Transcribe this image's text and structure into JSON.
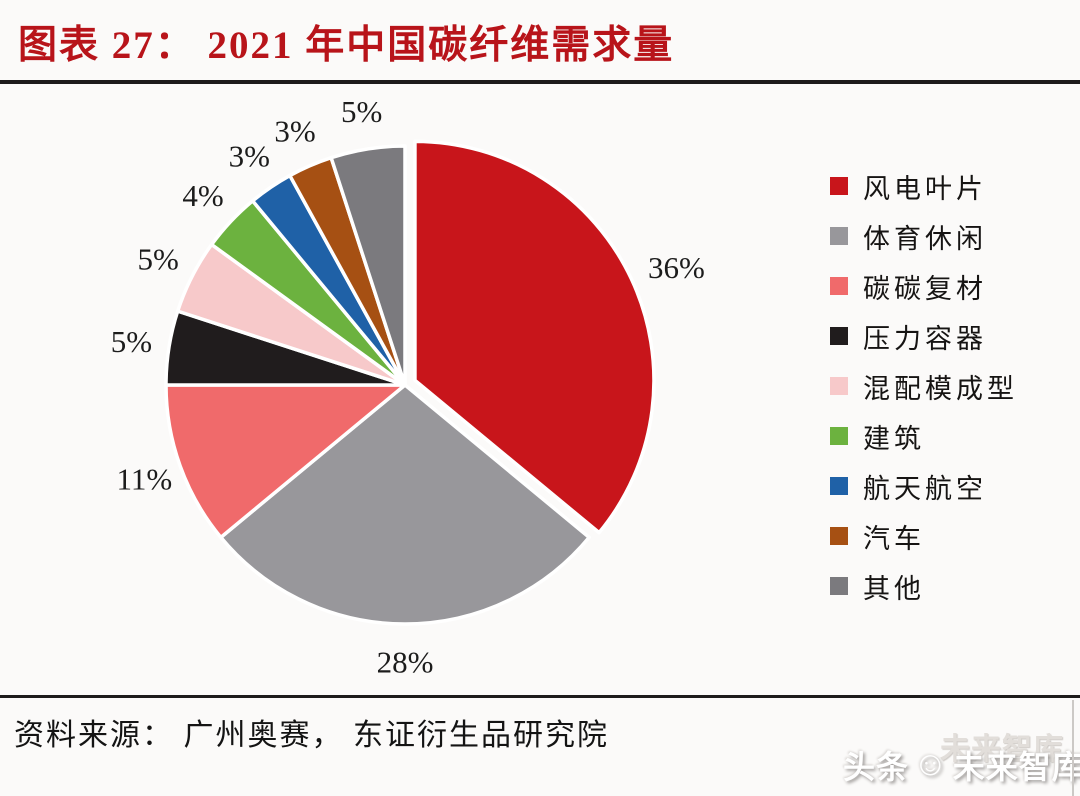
{
  "header": {
    "title": "图表 27： 2021 年中国碳纤维需求量",
    "title_color": "#b8141a"
  },
  "chart_data": {
    "type": "pie",
    "title": "2021 年中国碳纤维需求量",
    "start_angle_deg_from_top": 0,
    "direction": "clockwise",
    "legend_position": "right",
    "value_label_format": "{value}%",
    "slices": [
      {
        "label": "风电叶片",
        "value_pct": 36,
        "color": "#c8151b",
        "exploded": true
      },
      {
        "label": "体育休闲",
        "value_pct": 28,
        "color": "#98979b",
        "exploded": false
      },
      {
        "label": "碳碳复材",
        "value_pct": 11,
        "color": "#f06a6b",
        "exploded": false
      },
      {
        "label": "压力容器",
        "value_pct": 5,
        "color": "#201c1d",
        "exploded": false
      },
      {
        "label": "混配模成型",
        "value_pct": 5,
        "color": "#f7c9ca",
        "exploded": false
      },
      {
        "label": "建筑",
        "value_pct": 4,
        "color": "#6cb23f",
        "exploded": false
      },
      {
        "label": "航天航空",
        "value_pct": 3,
        "color": "#1f61a7",
        "exploded": false
      },
      {
        "label": "汽车",
        "value_pct": 3,
        "color": "#a65013",
        "exploded": false
      },
      {
        "label": "其他",
        "value_pct": 5,
        "color": "#7b7a7e",
        "exploded": false
      }
    ]
  },
  "footer": {
    "source": "资料来源： 广州奥赛， 东证衍生品研究院"
  },
  "watermark": {
    "ghost_text": "未来智库",
    "prefix": "头条",
    "smiley_icon": "☺",
    "suffix": "未来智库"
  }
}
